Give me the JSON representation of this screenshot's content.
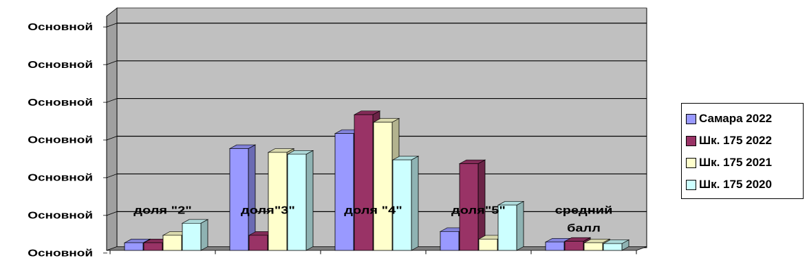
{
  "chart_data": {
    "type": "bar",
    "categories": [
      [
        "доля \"2\""
      ],
      [
        "доля\"3\""
      ],
      [
        "доля \"4\""
      ],
      [
        "доля\"5\""
      ],
      [
        "средний",
        "балл"
      ]
    ],
    "y_tick_labels": [
      "Основной",
      "Основной",
      "Основной",
      "Основной",
      "Основной",
      "Основной",
      "Основной"
    ],
    "ylim": [
      0,
      6
    ],
    "grid": true,
    "legend_position": "right",
    "series": [
      {
        "name": "Самара 2022",
        "color": "#9999ff",
        "values": [
          0.2,
          2.7,
          3.1,
          0.5,
          0.22
        ]
      },
      {
        "name": "Шк. 175 2022",
        "color": "#993366",
        "values": [
          0.2,
          0.4,
          3.6,
          2.3,
          0.24
        ]
      },
      {
        "name": "Шк. 175 2021",
        "color": "#ffffcc",
        "values": [
          0.4,
          2.6,
          3.4,
          0.3,
          0.2
        ]
      },
      {
        "name": "Шк. 175 2020",
        "color": "#ccffff",
        "values": [
          0.72,
          2.55,
          2.4,
          1.2,
          0.18
        ]
      }
    ]
  }
}
